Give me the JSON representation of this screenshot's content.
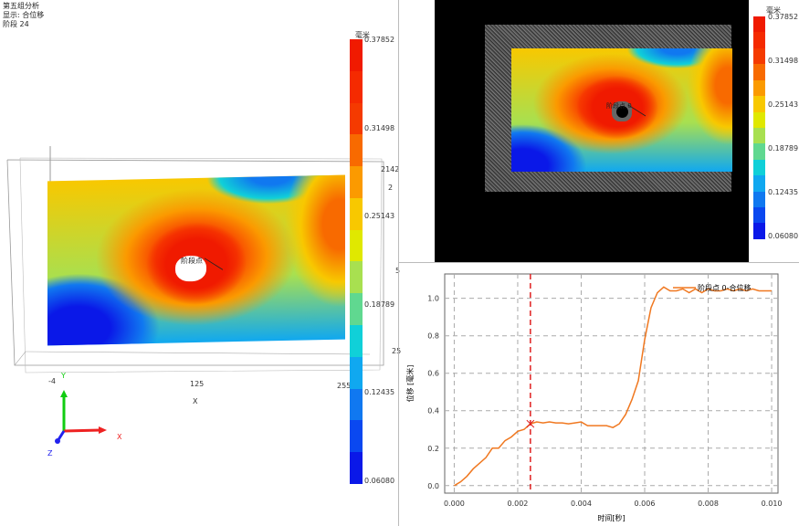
{
  "info": {
    "title": "第五组分析",
    "display": "显示: 合位移",
    "stage": "阶段 24"
  },
  "colorbar": {
    "unit": "毫米",
    "labels": [
      "0.37852",
      "0.31498",
      "0.25143",
      "0.18789",
      "0.12435",
      "0.06080"
    ],
    "colors": [
      "#f01a00",
      "#f52a00",
      "#f53a00",
      "#f86a00",
      "#fb9a00",
      "#f8c800",
      "#e0e800",
      "#a8e050",
      "#60d890",
      "#10d0d8",
      "#10a8f0",
      "#1078f0",
      "#0a48f0",
      "#0a18e8"
    ]
  },
  "view3d": {
    "x_ticks": [
      "-4",
      "125",
      "255"
    ],
    "x_axis_label": "X",
    "side_ticks": [
      "2142",
      "2",
      "5",
      "25"
    ],
    "axis_labels": {
      "x": "X",
      "y": "Y",
      "z": "Z"
    },
    "point_label": "阶段点"
  },
  "image_view": {
    "point_label": "阶段点 0"
  },
  "chart_data": {
    "type": "line",
    "xlabel": "时间[秒]",
    "ylabel": "位移 [毫米]",
    "xlim": [
      -0.0003,
      0.0102
    ],
    "ylim": [
      -0.04,
      1.13
    ],
    "x_ticks": [
      "0.000",
      "0.002",
      "0.004",
      "0.006",
      "0.008",
      "0.010"
    ],
    "y_ticks": [
      "0.0",
      "0.2",
      "0.4",
      "0.6",
      "0.8",
      "1.0"
    ],
    "grid": true,
    "legend": "top-right",
    "series": [
      {
        "name": "阶段点 0-合位移",
        "color": "#f07820",
        "x": [
          0,
          0.0002,
          0.0004,
          0.0006,
          0.0008,
          0.001,
          0.0012,
          0.0014,
          0.0016,
          0.0018,
          0.002,
          0.0022,
          0.0024,
          0.0026,
          0.0028,
          0.003,
          0.0032,
          0.0034,
          0.0036,
          0.0038,
          0.004,
          0.0042,
          0.0044,
          0.0046,
          0.0048,
          0.005,
          0.0052,
          0.0054,
          0.0056,
          0.0058,
          0.006,
          0.0062,
          0.0064,
          0.0066,
          0.0068,
          0.007,
          0.0072,
          0.0074,
          0.0076,
          0.0078,
          0.008,
          0.0082,
          0.0084,
          0.0086,
          0.0088,
          0.009,
          0.0092,
          0.0094,
          0.0096,
          0.0098,
          0.01
        ],
        "y": [
          0,
          0.02,
          0.05,
          0.09,
          0.12,
          0.15,
          0.2,
          0.2,
          0.24,
          0.26,
          0.29,
          0.3,
          0.33,
          0.34,
          0.335,
          0.34,
          0.335,
          0.335,
          0.33,
          0.335,
          0.34,
          0.32,
          0.32,
          0.32,
          0.32,
          0.31,
          0.33,
          0.38,
          0.46,
          0.56,
          0.78,
          0.95,
          1.03,
          1.06,
          1.04,
          1.04,
          1.05,
          1.03,
          1.05,
          1.03,
          1.05,
          1.04,
          1.04,
          1.05,
          1.04,
          1.05,
          1.04,
          1.05,
          1.04,
          1.04,
          1.04
        ]
      }
    ],
    "cursor": {
      "x": 0.0024,
      "y": 0.33,
      "color": "#e02020"
    }
  }
}
